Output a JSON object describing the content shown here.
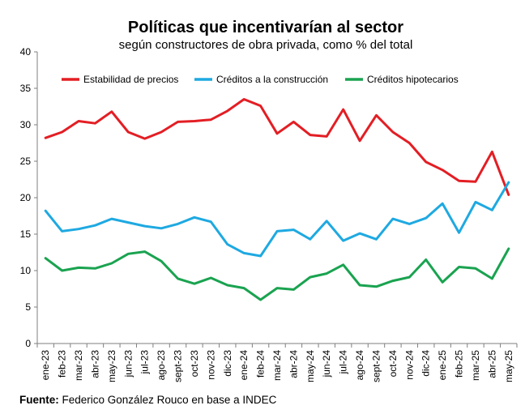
{
  "chart_data": {
    "type": "line",
    "title": "Políticas que incentivarían al sector",
    "subtitle": "según constructores de obra privada, como % del total",
    "xlabel": "",
    "ylabel": "",
    "ylim": [
      0,
      40
    ],
    "yticks": [
      0,
      5,
      10,
      15,
      20,
      25,
      30,
      35,
      40
    ],
    "grid": false,
    "legend": "top",
    "categories": [
      "ene-23",
      "feb-23",
      "mar-23",
      "abr-23",
      "may-23",
      "jun-23",
      "jul-23",
      "ago-23",
      "sept-23",
      "oct-23",
      "nov-23",
      "dic-23",
      "ene-24",
      "feb-24",
      "mar-24",
      "abr-24",
      "may-24",
      "jun-24",
      "jul-24",
      "ago-24",
      "sept-24",
      "oct-24",
      "nov-24",
      "dic-24",
      "ene-25",
      "feb-25",
      "mar-25",
      "abr-25",
      "may-25"
    ],
    "series": [
      {
        "name": "Estabilidad de precios",
        "color": "#e31e24",
        "values": [
          28.2,
          29.0,
          30.5,
          30.2,
          31.8,
          29.0,
          28.1,
          29.0,
          30.4,
          30.5,
          30.7,
          31.9,
          33.5,
          32.6,
          28.8,
          30.4,
          28.6,
          28.4,
          32.1,
          27.8,
          31.3,
          29.0,
          27.5,
          24.9,
          23.8,
          22.3,
          22.2,
          26.3,
          20.4
        ]
      },
      {
        "name": "Créditos a la construcción",
        "color": "#1ea9e1",
        "values": [
          18.2,
          15.4,
          15.7,
          16.2,
          17.1,
          16.6,
          16.1,
          15.8,
          16.4,
          17.3,
          16.7,
          13.6,
          12.4,
          12.0,
          15.4,
          15.6,
          14.3,
          16.8,
          14.1,
          15.1,
          14.3,
          17.1,
          16.4,
          17.2,
          19.2,
          15.2,
          19.4,
          18.3,
          22.1
        ]
      },
      {
        "name": "Créditos hipotecarios",
        "color": "#1aa350",
        "values": [
          11.7,
          10.0,
          10.4,
          10.3,
          11.0,
          12.3,
          12.6,
          11.3,
          8.9,
          8.2,
          9.0,
          8.0,
          7.6,
          6.0,
          7.6,
          7.4,
          9.1,
          9.6,
          10.8,
          8.0,
          7.8,
          8.6,
          9.1,
          11.5,
          8.4,
          10.5,
          10.3,
          8.9,
          13.0
        ]
      }
    ]
  },
  "source": {
    "label": "Fuente:",
    "text": "Federico González Rouco en base a INDEC"
  }
}
